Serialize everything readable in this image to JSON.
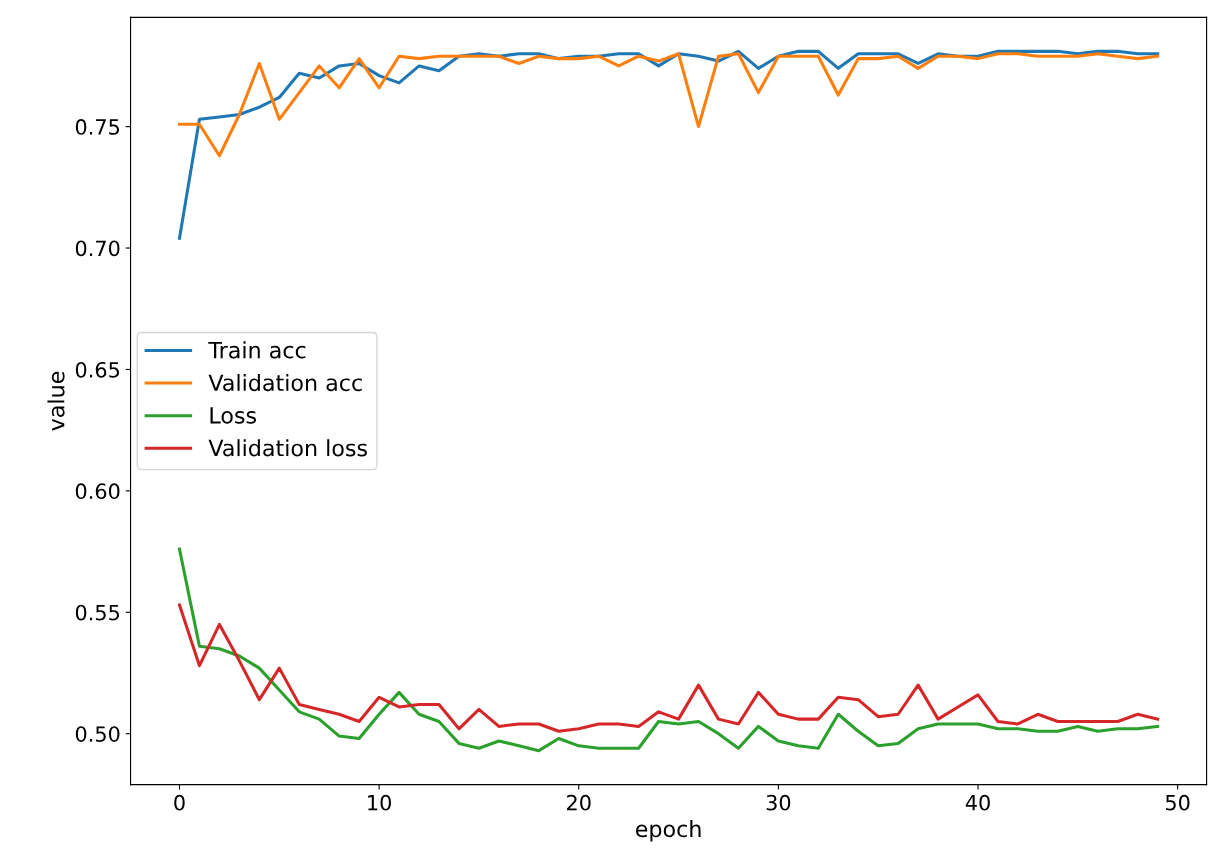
{
  "chart_data": {
    "type": "line",
    "xlabel": "epoch",
    "ylabel": "value",
    "x": [
      0,
      1,
      2,
      3,
      4,
      5,
      6,
      7,
      8,
      9,
      10,
      11,
      12,
      13,
      14,
      15,
      16,
      17,
      18,
      19,
      20,
      21,
      22,
      23,
      24,
      25,
      26,
      27,
      28,
      29,
      30,
      31,
      32,
      33,
      34,
      35,
      36,
      37,
      38,
      39,
      40,
      41,
      42,
      43,
      44,
      45,
      46,
      47,
      48,
      49
    ],
    "series": [
      {
        "name": "Train acc",
        "color": "#1f77b4",
        "values": [
          0.704,
          0.753,
          0.754,
          0.755,
          0.758,
          0.762,
          0.772,
          0.77,
          0.775,
          0.776,
          0.771,
          0.768,
          0.775,
          0.773,
          0.779,
          0.78,
          0.779,
          0.78,
          0.78,
          0.778,
          0.779,
          0.779,
          0.78,
          0.78,
          0.775,
          0.78,
          0.779,
          0.777,
          0.781,
          0.774,
          0.779,
          0.781,
          0.781,
          0.774,
          0.78,
          0.78,
          0.78,
          0.776,
          0.78,
          0.779,
          0.779,
          0.781,
          0.781,
          0.781,
          0.781,
          0.78,
          0.781,
          0.781,
          0.78,
          0.78
        ]
      },
      {
        "name": "Validation acc",
        "color": "#ff7f0e",
        "values": [
          0.751,
          0.751,
          0.738,
          0.755,
          0.776,
          0.753,
          0.764,
          0.775,
          0.766,
          0.778,
          0.766,
          0.779,
          0.778,
          0.779,
          0.779,
          0.779,
          0.779,
          0.776,
          0.779,
          0.778,
          0.778,
          0.779,
          0.775,
          0.779,
          0.777,
          0.78,
          0.75,
          0.779,
          0.78,
          0.764,
          0.779,
          0.779,
          0.779,
          0.763,
          0.778,
          0.778,
          0.779,
          0.774,
          0.779,
          0.779,
          0.778,
          0.78,
          0.78,
          0.779,
          0.779,
          0.779,
          0.78,
          0.779,
          0.778,
          0.779
        ]
      },
      {
        "name": "Loss",
        "color": "#2ca02c",
        "values": [
          0.576,
          0.536,
          0.535,
          0.532,
          0.527,
          0.518,
          0.509,
          0.506,
          0.499,
          0.498,
          0.508,
          0.517,
          0.508,
          0.505,
          0.496,
          0.494,
          0.497,
          0.495,
          0.493,
          0.498,
          0.495,
          0.494,
          0.494,
          0.494,
          0.505,
          0.504,
          0.505,
          0.5,
          0.494,
          0.503,
          0.497,
          0.495,
          0.494,
          0.508,
          0.501,
          0.495,
          0.496,
          0.502,
          0.504,
          0.504,
          0.504,
          0.502,
          0.502,
          0.501,
          0.501,
          0.503,
          0.501,
          0.502,
          0.502,
          0.503
        ]
      },
      {
        "name": "Validation loss",
        "color": "#d62728",
        "values": [
          0.553,
          0.528,
          0.545,
          0.53,
          0.514,
          0.527,
          0.512,
          0.51,
          0.508,
          0.505,
          0.515,
          0.511,
          0.512,
          0.512,
          0.502,
          0.51,
          0.503,
          0.504,
          0.504,
          0.501,
          0.502,
          0.504,
          0.504,
          0.503,
          0.509,
          0.506,
          0.52,
          0.506,
          0.504,
          0.517,
          0.508,
          0.506,
          0.506,
          0.515,
          0.514,
          0.507,
          0.508,
          0.52,
          0.506,
          0.511,
          0.516,
          0.505,
          0.504,
          0.508,
          0.505,
          0.505,
          0.505,
          0.505,
          0.508,
          0.506
        ]
      }
    ],
    "xlim": [
      -2.45,
      51.45
    ],
    "ylim": [
      0.479,
      0.795
    ],
    "xticks": [
      0,
      10,
      20,
      30,
      40,
      50
    ],
    "yticks": [
      {
        "value": 0.5,
        "label": "0.50"
      },
      {
        "value": 0.55,
        "label": "0.55"
      },
      {
        "value": 0.6,
        "label": "0.60"
      },
      {
        "value": 0.65,
        "label": "0.65"
      },
      {
        "value": 0.7,
        "label": "0.70"
      },
      {
        "value": 0.75,
        "label": "0.75"
      }
    ],
    "legend": "left",
    "grid": false,
    "marker": "none",
    "line_style": "solid"
  }
}
